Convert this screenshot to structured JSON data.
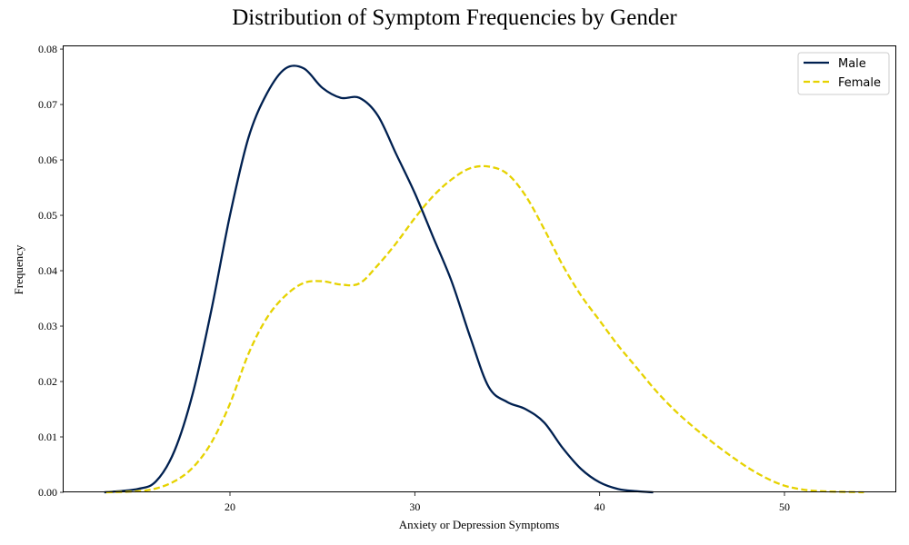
{
  "chart_data": {
    "type": "line",
    "title": "Distribution of Symptom Frequencies by Gender",
    "xlabel": "Anxiety or Depression Symptoms",
    "ylabel": "Frequency",
    "xlim": [
      11,
      56
    ],
    "ylim": [
      0,
      0.0805
    ],
    "xticks": [
      20,
      30,
      40,
      50
    ],
    "yticks": [
      0.0,
      0.01,
      0.02,
      0.03,
      0.04,
      0.05,
      0.06,
      0.07,
      0.08
    ],
    "grid": false,
    "legend_position": "top-right",
    "series": [
      {
        "name": "Male",
        "color": "#002050",
        "style": "solid",
        "points": [
          [
            13.2,
            0.0
          ],
          [
            15,
            0.0006
          ],
          [
            16,
            0.002
          ],
          [
            17,
            0.0075
          ],
          [
            18,
            0.018
          ],
          [
            19,
            0.033
          ],
          [
            20,
            0.05
          ],
          [
            21,
            0.064
          ],
          [
            22,
            0.072
          ],
          [
            23,
            0.0765
          ],
          [
            24,
            0.0765
          ],
          [
            25,
            0.073
          ],
          [
            26,
            0.0712
          ],
          [
            27,
            0.0712
          ],
          [
            28,
            0.068
          ],
          [
            29,
            0.061
          ],
          [
            30,
            0.054
          ],
          [
            31,
            0.046
          ],
          [
            32,
            0.038
          ],
          [
            33,
            0.028
          ],
          [
            34,
            0.019
          ],
          [
            35,
            0.0163
          ],
          [
            36,
            0.015
          ],
          [
            37,
            0.0126
          ],
          [
            38,
            0.008
          ],
          [
            39,
            0.0042
          ],
          [
            40,
            0.0018
          ],
          [
            41,
            0.0006
          ],
          [
            42,
            0.0002
          ],
          [
            42.9,
            0.0
          ]
        ]
      },
      {
        "name": "Female",
        "color": "#e6d200",
        "style": "dashed",
        "points": [
          [
            13.3,
            0.0
          ],
          [
            15,
            0.0002
          ],
          [
            16,
            0.0007
          ],
          [
            17,
            0.002
          ],
          [
            18,
            0.0045
          ],
          [
            19,
            0.009
          ],
          [
            20,
            0.016
          ],
          [
            21,
            0.025
          ],
          [
            22,
            0.0315
          ],
          [
            23,
            0.0355
          ],
          [
            24,
            0.0378
          ],
          [
            25,
            0.0381
          ],
          [
            26,
            0.0375
          ],
          [
            27,
            0.0377
          ],
          [
            28,
            0.041
          ],
          [
            29,
            0.045
          ],
          [
            30,
            0.0495
          ],
          [
            31,
            0.0535
          ],
          [
            32,
            0.0565
          ],
          [
            33,
            0.0585
          ],
          [
            34,
            0.0588
          ],
          [
            35,
            0.0575
          ],
          [
            36,
            0.0535
          ],
          [
            37,
            0.0475
          ],
          [
            38,
            0.041
          ],
          [
            39,
            0.0355
          ],
          [
            40,
            0.031
          ],
          [
            41,
            0.0265
          ],
          [
            42,
            0.0225
          ],
          [
            43,
            0.0185
          ],
          [
            44,
            0.015
          ],
          [
            45,
            0.012
          ],
          [
            46,
            0.0093
          ],
          [
            47,
            0.0068
          ],
          [
            48,
            0.0045
          ],
          [
            49,
            0.0026
          ],
          [
            50,
            0.0012
          ],
          [
            51,
            0.0005
          ],
          [
            52,
            0.0002
          ],
          [
            54.3,
            0.0
          ]
        ]
      }
    ]
  }
}
